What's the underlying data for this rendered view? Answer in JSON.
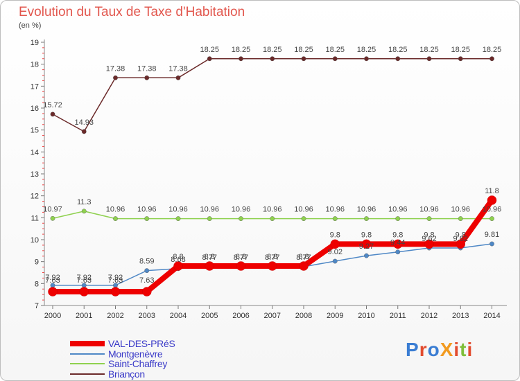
{
  "title": "Evolution du Taux de Taxe d'Habitation",
  "unit": "(en %)",
  "logo": {
    "text": "ProXiti",
    "colors": [
      "#3a7dd3",
      "#e24b2e",
      "#f29a1f",
      "#7fbf3a"
    ]
  },
  "chart_data": {
    "type": "line",
    "title": "Evolution du Taux de Taxe d'Habitation",
    "ylabel": "(en %)",
    "xlabel": "",
    "ylim": [
      7,
      19
    ],
    "yticks": [
      7,
      8,
      9,
      10,
      11,
      12,
      13,
      14,
      15,
      16,
      17,
      18,
      19
    ],
    "categories": [
      "2000",
      "2001",
      "2002",
      "2003",
      "2004",
      "2005",
      "2006",
      "2007",
      "2008",
      "2009",
      "2010",
      "2011",
      "2012",
      "2013",
      "2014"
    ],
    "series": [
      {
        "name": "VAL-DES-PRéS",
        "color": "#ee0000",
        "values": [
          7.63,
          7.63,
          7.63,
          7.63,
          8.8,
          8.8,
          8.8,
          8.8,
          8.8,
          9.8,
          9.8,
          9.8,
          9.8,
          9.8,
          11.8
        ]
      },
      {
        "name": "Montgenèvre",
        "color": "#4f88c6",
        "values": [
          7.92,
          7.92,
          7.92,
          8.59,
          8.68,
          8.77,
          8.77,
          8.77,
          8.77,
          9.02,
          9.27,
          9.44,
          9.62,
          9.62,
          9.81
        ]
      },
      {
        "name": "Saint-Chaffrey",
        "color": "#8fd14f",
        "values": [
          10.97,
          11.3,
          10.96,
          10.96,
          10.96,
          10.96,
          10.96,
          10.96,
          10.96,
          10.96,
          10.96,
          10.96,
          10.96,
          10.96,
          10.96
        ]
      },
      {
        "name": "Briançon",
        "color": "#6b2a2a",
        "values": [
          15.72,
          14.93,
          17.38,
          17.38,
          17.38,
          18.25,
          18.25,
          18.25,
          18.25,
          18.25,
          18.25,
          18.25,
          18.25,
          18.25,
          18.25
        ]
      }
    ],
    "labels": [
      [
        "7.63",
        "7.63",
        "7.63",
        "7.63",
        "8.8",
        "8.8",
        "8.8",
        "8.8",
        "8.8",
        "9.8",
        "9.8",
        "9.8",
        "9.8",
        "9.8",
        "11.8"
      ],
      [
        "7.92",
        "7.92",
        "7.92",
        "8.59",
        "8.68",
        "8.77",
        "8.77",
        "8.77",
        "8.77",
        "9.02",
        "9.27",
        "9.44",
        "9.62",
        "9.62",
        "9.81"
      ],
      [
        "10.97",
        "11.3",
        "10.96",
        "10.96",
        "10.96",
        "10.96",
        "10.96",
        "10.96",
        "10.96",
        "10.96",
        "10.96",
        "10.96",
        "10.96",
        "10.96",
        "10.96"
      ],
      [
        "15.72",
        "14.93",
        "17.38",
        "17.38",
        "17.38",
        "18.25",
        "18.25",
        "18.25",
        "18.25",
        "18.25",
        "18.25",
        "18.25",
        "18.25",
        "18.25",
        "18.25"
      ]
    ],
    "legend_position": "bottom-left",
    "grid": false
  }
}
